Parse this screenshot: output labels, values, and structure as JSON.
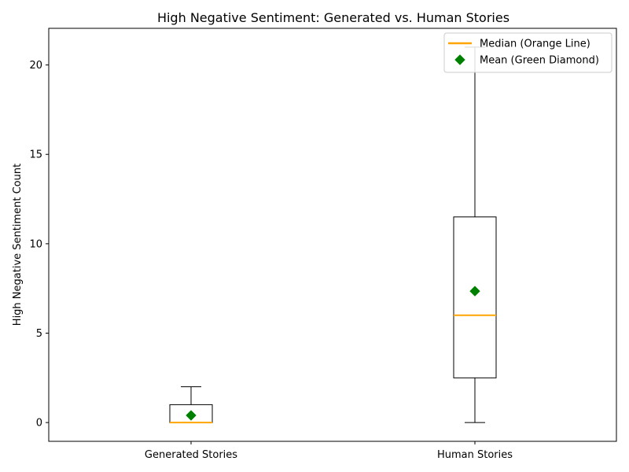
{
  "chart_data": {
    "type": "box",
    "title": "High Negative Sentiment: Generated vs. Human Stories",
    "xlabel": "",
    "ylabel": "High Negative Sentiment Count",
    "categories": [
      "Generated Stories",
      "Human Stories"
    ],
    "ylim": [
      -1.05,
      22.05
    ],
    "yticks": [
      0,
      5,
      10,
      15,
      20
    ],
    "grid": false,
    "legend_position": "top-right",
    "boxes": [
      {
        "name": "Generated Stories",
        "whisker_low": 0,
        "q1": 0,
        "median": 0,
        "q3": 1,
        "whisker_high": 2,
        "mean": 0.4
      },
      {
        "name": "Human Stories",
        "whisker_low": 0,
        "q1": 2.5,
        "median": 6,
        "q3": 11.5,
        "whisker_high": 21,
        "mean": 7.35
      }
    ],
    "legend": [
      {
        "label": "Median (Orange Line)",
        "marker": "line",
        "color": "#ffa500"
      },
      {
        "label": "Mean (Green Diamond)",
        "marker": "diamond",
        "color": "#008000"
      }
    ],
    "colors": {
      "box": "#000000",
      "median": "#ffa500",
      "mean": "#008000"
    }
  }
}
